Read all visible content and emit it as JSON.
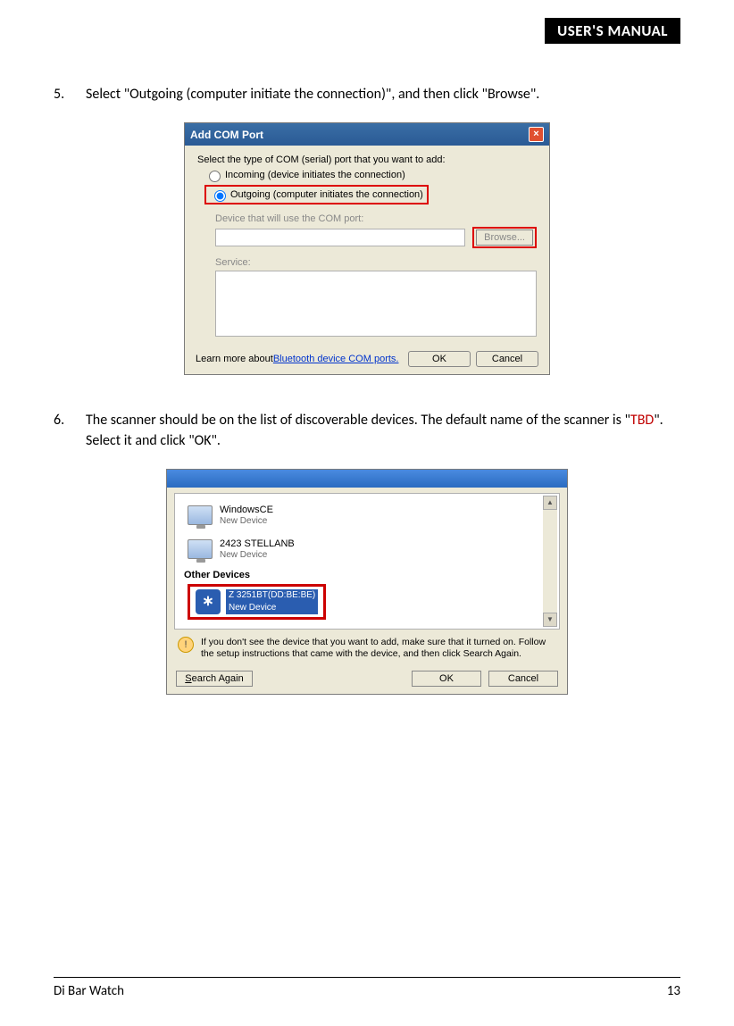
{
  "header": {
    "title": "USER'S MANUAL"
  },
  "step5": {
    "num": "5.",
    "text": "Select \"Outgoing (computer initiate the connection)\", and then click \"Browse\"."
  },
  "dlg1": {
    "title": "Add COM Port",
    "prompt": "Select the type of COM (serial) port that you want to add:",
    "radio_in": "Incoming (device initiates the connection)",
    "radio_out": "Outgoing (computer initiates the connection)",
    "device_label": "Device that will use the COM port:",
    "browse": "Browse...",
    "service_label": "Service:",
    "learn_prefix": "Learn more about ",
    "learn_link": "Bluetooth device COM ports.",
    "ok": "OK",
    "cancel": "Cancel"
  },
  "step6": {
    "num": "6.",
    "text_a": "The scanner should be on the list of discoverable devices. The default name of the scanner is \"",
    "tbd": "TBD",
    "text_b": "\". Select it and click \"OK\"."
  },
  "dlg2": {
    "devices": [
      {
        "name": "WindowsCE",
        "sub": "New Device"
      },
      {
        "name": "2423 STELLANB",
        "sub": "New Device"
      }
    ],
    "other_label": "Other Devices",
    "selected": {
      "name": "Z 3251BT(DD:BE:BE)",
      "sub": "New Device"
    },
    "hint": "If you don't see the device that you want to add, make sure that it turned on. Follow the setup instructions that came with the device, and then click Search Again.",
    "search_again": "Search Again",
    "ok": "OK",
    "cancel": "Cancel"
  },
  "footer": {
    "left": "Di Bar Watch",
    "page": "13"
  }
}
